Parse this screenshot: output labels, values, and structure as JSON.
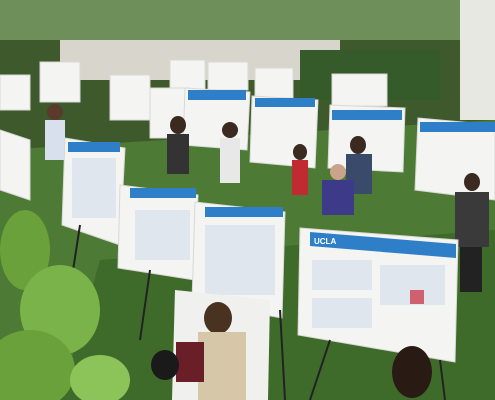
{
  "poster_label": "UCLA"
}
